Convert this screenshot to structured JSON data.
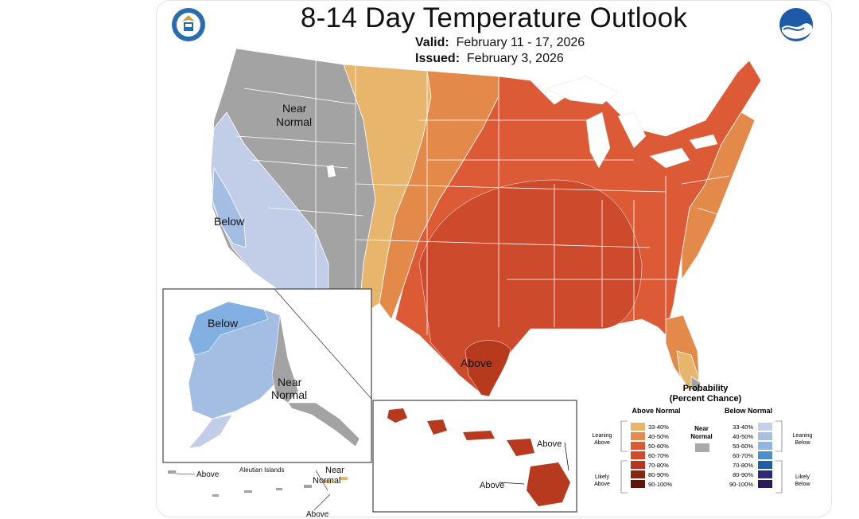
{
  "title": "8-14 Day Temperature Outlook",
  "valid_label": "Valid:",
  "valid_dates": "February 11 - 17, 2026",
  "issued_label": "Issued:",
  "issued_date": "February 3, 2026",
  "labels": {
    "conus_near_normal_1": "Near",
    "conus_near_normal_2": "Normal",
    "conus_below": "Below",
    "conus_above": "Above",
    "alaska_below": "Below",
    "alaska_near_1": "Near",
    "alaska_near_2": "Normal",
    "aleutian_above": "Above",
    "aleutian_islands": "Aleutian Islands",
    "aleutian_near_1": "Near",
    "aleutian_near_2": "Normal",
    "aleutian_above_2": "Above",
    "hawaii_above_1": "Above",
    "hawaii_above_2": "Above"
  },
  "legend": {
    "title": "Probability",
    "subtitle": "(Percent Chance)",
    "above_header": "Above Normal",
    "below_header": "Below Normal",
    "near_label_1": "Near",
    "near_label_2": "Normal",
    "leaning_above_1": "Leaning",
    "leaning_above_2": "Above",
    "likely_above_1": "Likely",
    "likely_above_2": "Above",
    "leaning_below_1": "Leaning",
    "leaning_below_2": "Below",
    "likely_below_1": "Likely",
    "likely_below_2": "Below",
    "bins": [
      "33-40%",
      "40-50%",
      "50-60%",
      "60-70%",
      "70-80%",
      "80-90%",
      "90-100%"
    ],
    "above_colors": [
      "#e9b56a",
      "#e38b4c",
      "#db5a35",
      "#d14a2c",
      "#b83320",
      "#8c2414",
      "#5c1607"
    ],
    "below_colors": [
      "#c5d0e8",
      "#a9bfe0",
      "#8fb5e0",
      "#4f8dce",
      "#1f5fa8",
      "#2c2a7a",
      "#2a1a5a"
    ],
    "near_color": "#a9a9a9"
  },
  "colors": {
    "near_normal": "#a3a3a3",
    "below_33_40": "#c2cde8",
    "below_40_50": "#a3bde3",
    "below_50_60": "#82b0e3",
    "above_33_40": "#e7b56c",
    "above_40_50": "#e3894a",
    "above_50_60": "#dc5a36",
    "above_60_70": "#cd4a2c",
    "above_70_80": "#b73a1e"
  }
}
